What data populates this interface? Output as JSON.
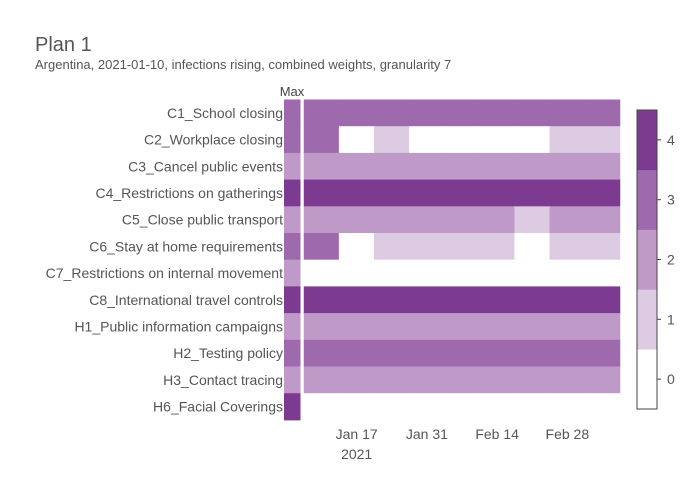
{
  "chart_data": {
    "type": "heatmap",
    "title": "Plan 1",
    "subtitle": "Argentina, 2021-01-10, infections rising, combined weights, granularity 7",
    "max_column_label": "Max",
    "rows": [
      "C1_School closing",
      "C2_Workplace closing",
      "C3_Cancel public events",
      "C4_Restrictions on gatherings",
      "C5_Close public transport",
      "C6_Stay at home requirements",
      "C7_Restrictions on internal movement",
      "C8_International travel controls",
      "H1_Public information campaigns",
      "H2_Testing policy",
      "H3_Contact tracing",
      "H6_Facial Coverings"
    ],
    "week_starts": [
      "2021-01-10",
      "2021-01-17",
      "2021-01-24",
      "2021-01-31",
      "2021-02-07",
      "2021-02-14",
      "2021-02-21",
      "2021-02-28",
      "2021-03-07"
    ],
    "x_tick_labels": [
      {
        "date": "2021-01-17",
        "label": "Jan 17",
        "sublabel": "2021"
      },
      {
        "date": "2021-01-31",
        "label": "Jan 31",
        "sublabel": ""
      },
      {
        "date": "2021-02-14",
        "label": "Feb 14",
        "sublabel": ""
      },
      {
        "date": "2021-02-28",
        "label": "Feb 28",
        "sublabel": ""
      }
    ],
    "max_values": [
      3,
      3,
      2,
      4,
      2,
      3,
      2,
      4,
      2,
      3,
      2,
      4
    ],
    "values": [
      [
        3,
        3,
        3,
        3,
        3,
        3,
        3,
        3,
        3
      ],
      [
        3,
        0,
        1,
        0,
        0,
        0,
        0,
        1,
        1
      ],
      [
        2,
        2,
        2,
        2,
        2,
        2,
        2,
        2,
        2
      ],
      [
        4,
        4,
        4,
        4,
        4,
        4,
        4,
        4,
        4
      ],
      [
        2,
        2,
        2,
        2,
        2,
        2,
        1,
        2,
        2
      ],
      [
        3,
        0,
        1,
        1,
        1,
        1,
        0,
        1,
        1
      ],
      [
        0,
        0,
        0,
        0,
        0,
        0,
        0,
        0,
        0
      ],
      [
        4,
        4,
        4,
        4,
        4,
        4,
        4,
        4,
        4
      ],
      [
        2,
        2,
        2,
        2,
        2,
        2,
        2,
        2,
        2
      ],
      [
        3,
        3,
        3,
        3,
        3,
        3,
        3,
        3,
        3
      ],
      [
        2,
        2,
        2,
        2,
        2,
        2,
        2,
        2,
        2
      ],
      [
        0,
        0,
        0,
        0,
        0,
        0,
        0,
        0,
        0
      ]
    ],
    "colorscale": {
      "ticks": [
        0,
        1,
        2,
        3,
        4
      ],
      "colors": [
        "#ffffff",
        "#dccbe3",
        "#bf9ac8",
        "#9e69ad",
        "#7c3a90"
      ]
    }
  }
}
